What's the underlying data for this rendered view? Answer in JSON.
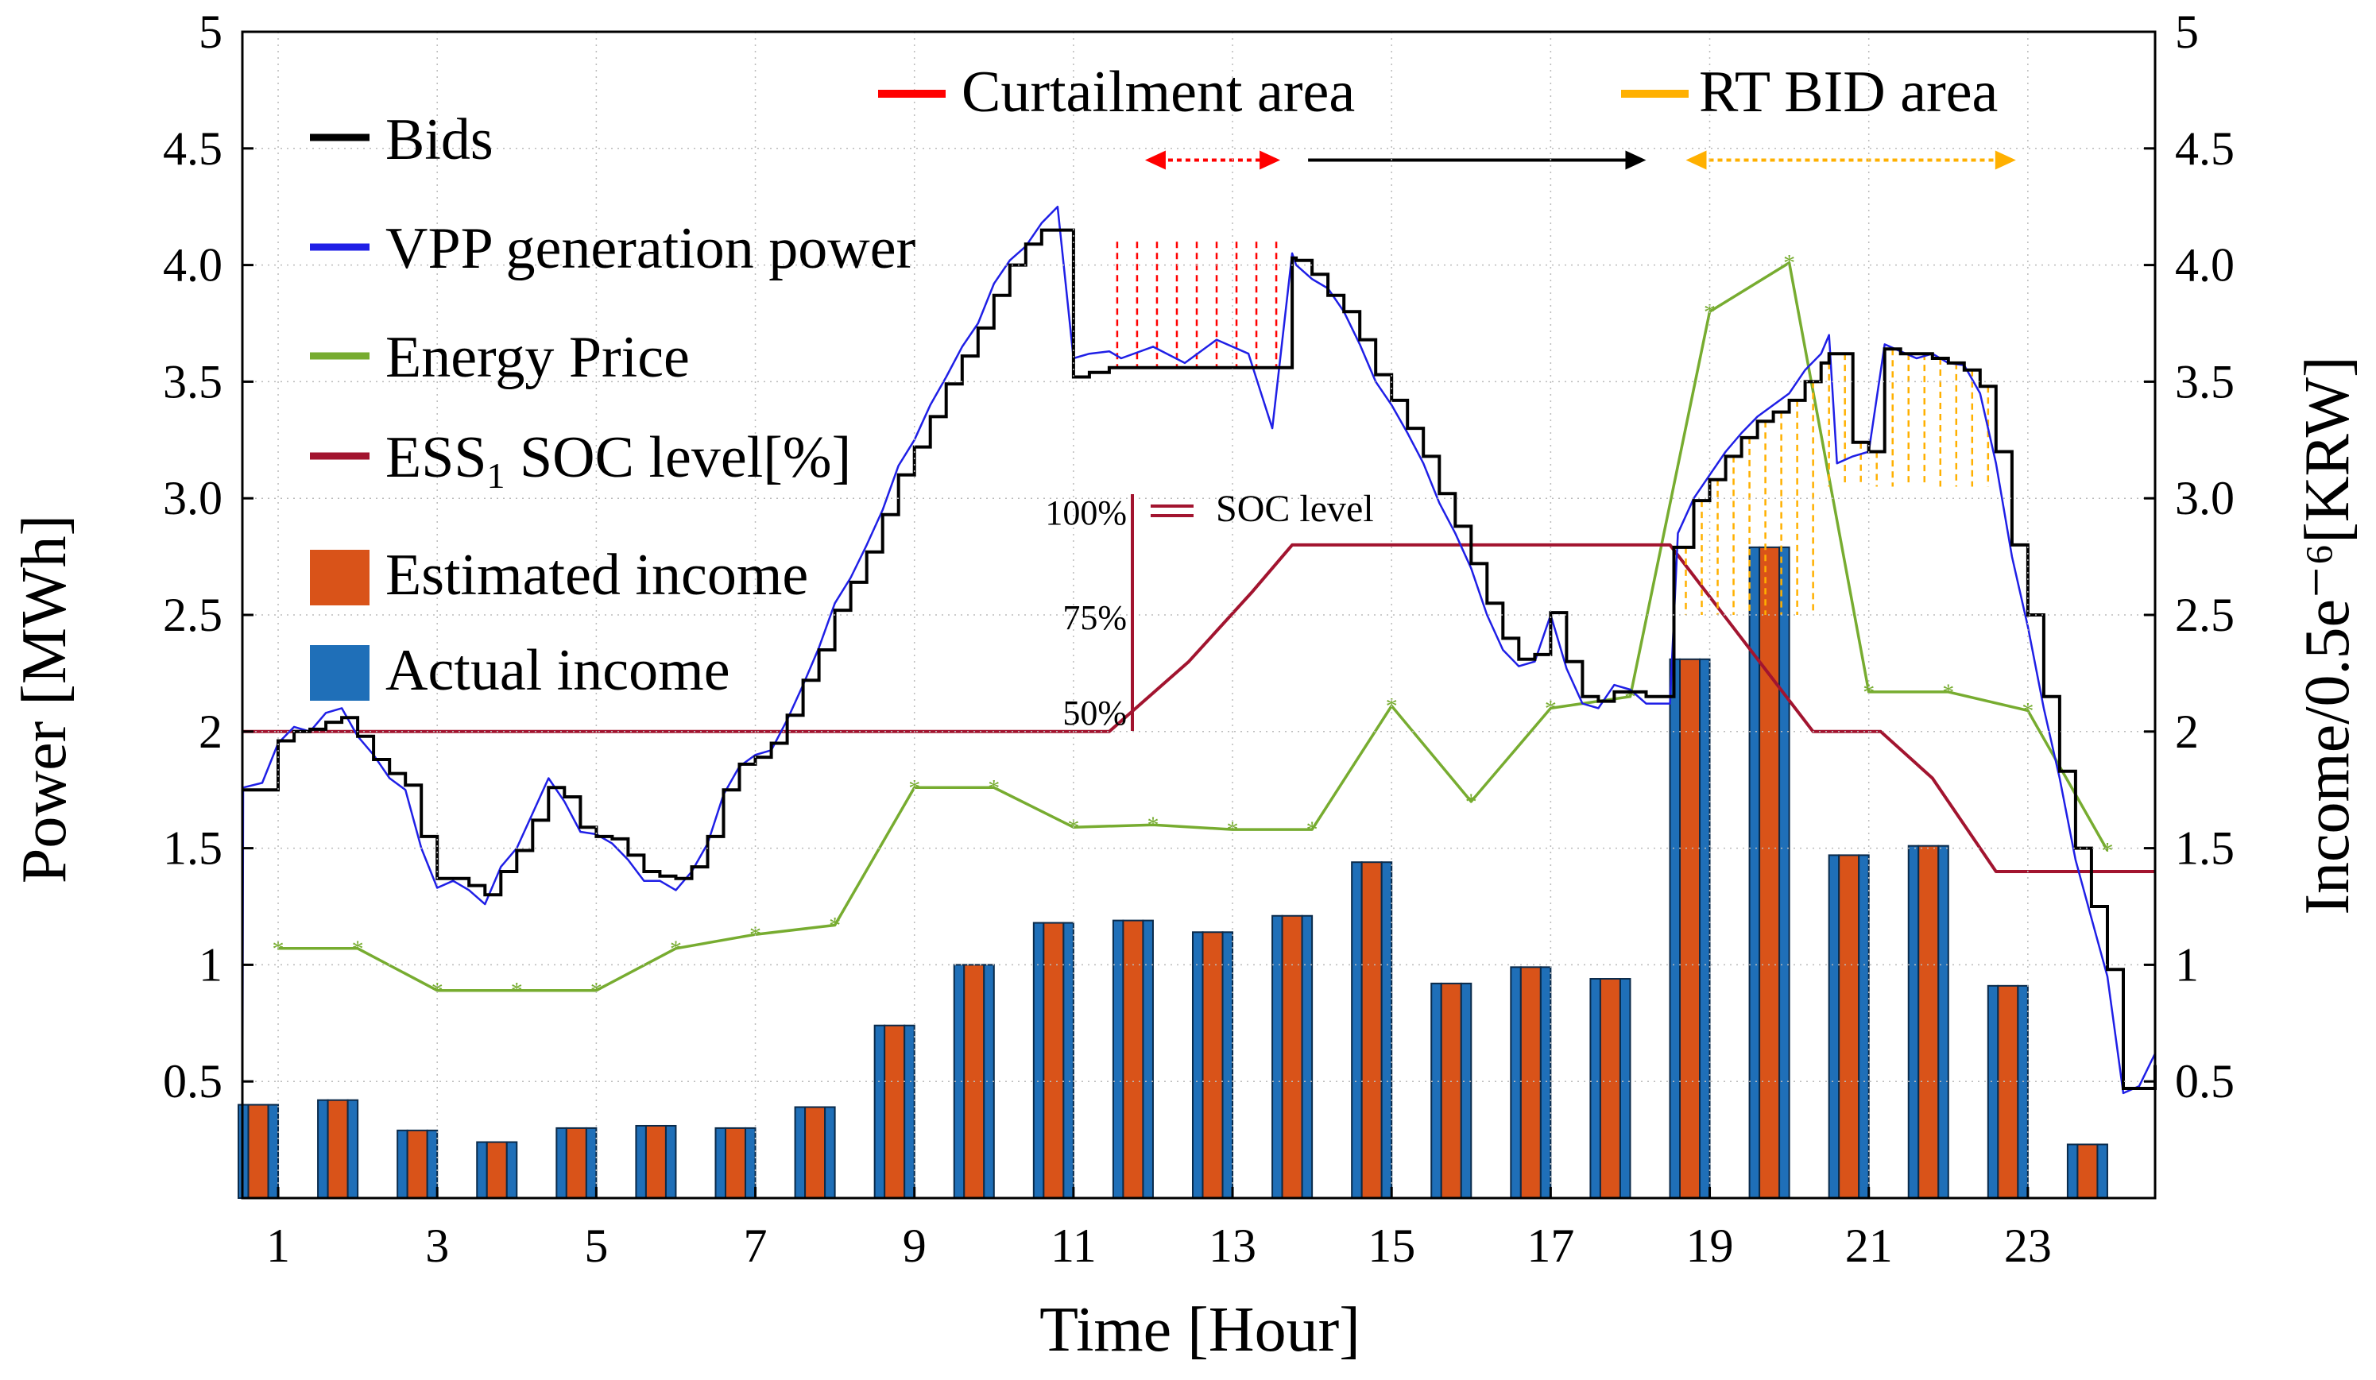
{
  "chart_data": {
    "type": "bar+line",
    "title": "",
    "xlabel": "Time [Hour]",
    "ylabel_left": "Power [MWh]",
    "ylabel_right": "Income/0.5e⁻⁶[KRW]",
    "xlim": [
      0.55,
      24.6
    ],
    "ylim_left": [
      0,
      5
    ],
    "ylim_right": [
      0,
      5
    ],
    "x_ticks": [
      1,
      3,
      5,
      7,
      9,
      11,
      13,
      15,
      17,
      19,
      21,
      23
    ],
    "x_tick_labels": [
      "1",
      "3",
      "5",
      "7",
      "9",
      "11",
      "13",
      "15",
      "17",
      "19",
      "21",
      "23"
    ],
    "y_left_ticks": [
      0.5,
      1,
      1.5,
      2,
      2.5,
      3,
      3.5,
      4,
      4.5,
      5
    ],
    "y_left_tick_labels": [
      "0.5",
      "1",
      "1.5",
      "2",
      "2.5",
      "3.0",
      "3.5",
      "4.0",
      "4.5",
      "5"
    ],
    "y_right_ticks": [
      0.5,
      1,
      1.5,
      2,
      2.5,
      3,
      3.5,
      4,
      4.5,
      5
    ],
    "y_right_tick_labels": [
      "0.5",
      "1",
      "1.5",
      "2",
      "2.5",
      "3.0",
      "3.5",
      "4.0",
      "4.5",
      "5"
    ],
    "legend": [
      "Bids",
      "VPP generation power",
      "Energy Price",
      "ESS",
      "1",
      " SOC level[%]",
      "Estimated income",
      "Actual income"
    ],
    "hours": [
      1,
      2,
      3,
      4,
      5,
      6,
      7,
      8,
      9,
      10,
      11,
      12,
      13,
      14,
      15,
      16,
      17,
      18,
      19,
      20,
      21,
      22,
      23,
      24
    ],
    "series": [
      {
        "name": "Actual income",
        "kind": "bar",
        "color": "#1f6fb8",
        "values": [
          0.4,
          0.42,
          0.29,
          0.24,
          0.3,
          0.31,
          0.3,
          0.39,
          0.74,
          1.0,
          1.18,
          1.19,
          1.14,
          1.21,
          1.44,
          0.92,
          0.99,
          0.94,
          2.31,
          2.79,
          1.47,
          1.51,
          0.91,
          0.23
        ]
      },
      {
        "name": "Estimated income",
        "kind": "bar",
        "color": "#d95319",
        "values": [
          0.4,
          0.42,
          0.29,
          0.24,
          0.3,
          0.31,
          0.3,
          0.39,
          0.74,
          1.0,
          1.18,
          1.19,
          1.14,
          1.21,
          1.44,
          0.92,
          0.99,
          0.94,
          2.31,
          2.79,
          1.47,
          1.51,
          0.91,
          0.23
        ]
      },
      {
        "name": "Energy Price",
        "kind": "line",
        "color": "#77ac30",
        "x": [
          1,
          2,
          3,
          4,
          5,
          6,
          7,
          8,
          9,
          10,
          11,
          12,
          13,
          14,
          15,
          16,
          17,
          18,
          19,
          20,
          21,
          22,
          23,
          24
        ],
        "values": [
          1.07,
          1.07,
          0.89,
          0.89,
          0.89,
          1.07,
          1.13,
          1.17,
          1.76,
          1.76,
          1.59,
          1.6,
          1.58,
          1.58,
          2.11,
          1.7,
          2.1,
          2.15,
          3.8,
          4.01,
          2.17,
          2.17,
          2.09,
          1.49
        ]
      },
      {
        "name": "ESS1 SOC level[%]",
        "kind": "line",
        "color": "#a2142f",
        "x": [
          0.55,
          11.45,
          12.45,
          13.25,
          13.75,
          18.5,
          20.3,
          21.15,
          21.8,
          22.6,
          24.6
        ],
        "values": [
          2.0,
          2.0,
          2.3,
          2.6,
          2.8,
          2.8,
          2.0,
          2.0,
          1.8,
          1.4,
          1.4
        ]
      },
      {
        "name": "Bids",
        "kind": "line",
        "color": "#000000",
        "x": [
          0.55,
          0.8,
          1.0,
          1.2,
          1.4,
          1.6,
          1.8,
          2.0,
          2.2,
          2.4,
          2.6,
          2.8,
          3.0,
          3.2,
          3.4,
          3.6,
          3.8,
          4.0,
          4.2,
          4.4,
          4.6,
          4.8,
          5.0,
          5.2,
          5.4,
          5.6,
          5.8,
          6.0,
          6.2,
          6.4,
          6.6,
          6.8,
          7.0,
          7.2,
          7.4,
          7.6,
          7.8,
          8.0,
          8.2,
          8.4,
          8.6,
          8.8,
          9.0,
          9.2,
          9.4,
          9.6,
          9.8,
          10.0,
          10.2,
          10.4,
          10.6,
          10.8,
          11.0,
          11.2,
          11.45,
          11.5,
          12.0,
          12.5,
          13.0,
          13.5,
          13.75,
          13.8,
          14.0,
          14.2,
          14.4,
          14.6,
          14.8,
          15.0,
          15.2,
          15.4,
          15.6,
          15.8,
          16.0,
          16.2,
          16.4,
          16.6,
          16.8,
          17.0,
          17.2,
          17.4,
          17.6,
          17.8,
          18.0,
          18.2,
          18.5,
          18.55,
          18.8,
          19.0,
          19.2,
          19.4,
          19.6,
          19.8,
          20.0,
          20.2,
          20.4,
          20.5,
          20.6,
          20.8,
          21.0,
          21.15,
          21.2,
          21.4,
          21.6,
          21.8,
          22.0,
          22.2,
          22.4,
          22.6,
          22.8,
          23.0,
          23.2,
          23.4,
          23.6,
          23.8,
          24.0,
          24.2,
          24.4,
          24.6
        ],
        "values": [
          1.75,
          1.75,
          1.96,
          2.0,
          2.01,
          2.04,
          2.06,
          1.98,
          1.88,
          1.82,
          1.77,
          1.55,
          1.37,
          1.37,
          1.34,
          1.3,
          1.4,
          1.49,
          1.62,
          1.76,
          1.72,
          1.59,
          1.55,
          1.54,
          1.47,
          1.4,
          1.38,
          1.37,
          1.42,
          1.55,
          1.75,
          1.86,
          1.89,
          1.95,
          2.07,
          2.22,
          2.35,
          2.52,
          2.64,
          2.77,
          2.93,
          3.1,
          3.22,
          3.35,
          3.49,
          3.61,
          3.73,
          3.87,
          4.0,
          4.09,
          4.15,
          4.15,
          3.52,
          3.54,
          3.56,
          3.56,
          3.56,
          3.56,
          3.56,
          3.56,
          4.03,
          4.02,
          3.96,
          3.87,
          3.8,
          3.68,
          3.53,
          3.42,
          3.3,
          3.18,
          3.02,
          2.88,
          2.72,
          2.55,
          2.4,
          2.31,
          2.33,
          2.51,
          2.3,
          2.15,
          2.13,
          2.17,
          2.17,
          2.15,
          2.15,
          2.79,
          2.99,
          3.08,
          3.18,
          3.26,
          3.33,
          3.37,
          3.42,
          3.5,
          3.58,
          3.62,
          3.62,
          3.24,
          3.2,
          3.2,
          3.64,
          3.62,
          3.62,
          3.6,
          3.58,
          3.55,
          3.48,
          3.2,
          2.8,
          2.5,
          2.15,
          1.83,
          1.5,
          1.25,
          0.98,
          0.47,
          0.47,
          0.57
        ]
      },
      {
        "name": "VPP generation power",
        "kind": "line",
        "color": "#1f1fe6",
        "x": [
          0.55,
          0.56,
          0.8,
          1.0,
          1.2,
          1.4,
          1.6,
          1.8,
          2.0,
          2.2,
          2.4,
          2.6,
          2.8,
          3.0,
          3.2,
          3.4,
          3.6,
          3.8,
          4.0,
          4.2,
          4.4,
          4.6,
          4.8,
          5.0,
          5.2,
          5.4,
          5.6,
          5.8,
          6.0,
          6.2,
          6.4,
          6.6,
          6.8,
          7.0,
          7.2,
          7.4,
          7.6,
          7.8,
          8.0,
          8.2,
          8.4,
          8.6,
          8.8,
          9.0,
          9.2,
          9.4,
          9.6,
          9.8,
          10.0,
          10.2,
          10.4,
          10.6,
          10.8,
          11.0,
          11.2,
          11.45,
          11.6,
          12.0,
          12.4,
          12.8,
          13.2,
          13.5,
          13.75,
          13.8,
          14.0,
          14.2,
          14.4,
          14.6,
          14.8,
          15.0,
          15.2,
          15.4,
          15.6,
          15.8,
          16.0,
          16.2,
          16.4,
          16.6,
          16.8,
          17.0,
          17.2,
          17.4,
          17.6,
          17.8,
          18.0,
          18.2,
          18.5,
          18.6,
          18.8,
          19.0,
          19.2,
          19.4,
          19.6,
          19.8,
          20.0,
          20.2,
          20.4,
          20.5,
          20.6,
          20.8,
          21.0,
          21.2,
          21.4,
          21.6,
          21.8,
          22.0,
          22.2,
          22.4,
          22.6,
          22.8,
          23.0,
          23.2,
          23.4,
          23.6,
          23.8,
          24.0,
          24.2,
          24.4,
          24.6
        ],
        "values": [
          0.3,
          1.76,
          1.78,
          1.95,
          2.02,
          2.0,
          2.08,
          2.1,
          1.98,
          1.9,
          1.8,
          1.75,
          1.5,
          1.33,
          1.36,
          1.32,
          1.26,
          1.42,
          1.5,
          1.65,
          1.8,
          1.7,
          1.57,
          1.56,
          1.52,
          1.45,
          1.36,
          1.36,
          1.32,
          1.4,
          1.52,
          1.73,
          1.85,
          1.9,
          1.92,
          2.05,
          2.2,
          2.36,
          2.55,
          2.66,
          2.8,
          2.95,
          3.14,
          3.25,
          3.4,
          3.52,
          3.65,
          3.75,
          3.92,
          4.02,
          4.08,
          4.18,
          4.25,
          3.6,
          3.62,
          3.63,
          3.6,
          3.65,
          3.58,
          3.68,
          3.62,
          3.3,
          4.05,
          4.0,
          3.94,
          3.9,
          3.8,
          3.66,
          3.5,
          3.4,
          3.28,
          3.15,
          2.98,
          2.85,
          2.7,
          2.5,
          2.35,
          2.28,
          2.3,
          2.5,
          2.27,
          2.12,
          2.1,
          2.2,
          2.18,
          2.12,
          2.12,
          2.85,
          3.0,
          3.1,
          3.2,
          3.28,
          3.35,
          3.4,
          3.45,
          3.55,
          3.62,
          3.7,
          3.15,
          3.18,
          3.2,
          3.66,
          3.63,
          3.6,
          3.62,
          3.58,
          3.57,
          3.45,
          3.15,
          2.75,
          2.45,
          2.1,
          1.8,
          1.45,
          1.2,
          0.95,
          0.45,
          0.48,
          0.62
        ]
      }
    ],
    "annotations": {
      "curtailment_label": "Curtailment area",
      "rt_bid_label": "RT BID area",
      "soc_label": "SOC level",
      "soc_scale_100": "100%",
      "soc_scale_75": "75%",
      "soc_scale_50": "50%",
      "curtailment_color": "#ff0000",
      "rt_bid_color": "#ffb000"
    }
  }
}
